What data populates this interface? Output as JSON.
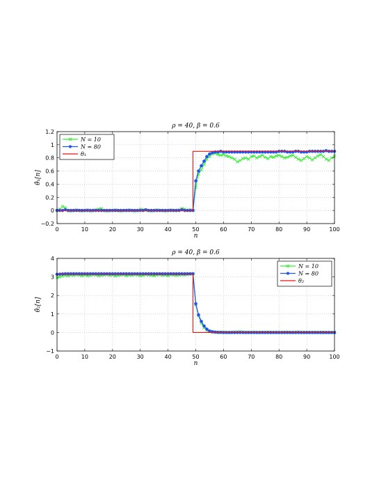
{
  "chart_data": [
    {
      "type": "line",
      "title": "ρ = 40, β = 0.6",
      "xlabel": "n",
      "ylabel": "θ̂₁[n]",
      "xlim": [
        0,
        100
      ],
      "ylim": [
        -0.2,
        1.2
      ],
      "xticks": [
        "0",
        "10",
        "20",
        "30",
        "40",
        "50",
        "60",
        "70",
        "80",
        "90",
        "100"
      ],
      "yticks": [
        "−0.2",
        "0",
        "0.2",
        "0.4",
        "0.6",
        "0.8",
        "1",
        "1.2"
      ],
      "grid": true,
      "legend_position": "top-left",
      "series": [
        {
          "name": "N = 10",
          "color": "#33ee33",
          "marker": "x",
          "y": [
            0.0,
            0.02,
            0.06,
            0.04,
            0.0,
            -0.01,
            0.0,
            0.01,
            0.0,
            -0.01,
            0.0,
            0.01,
            -0.01,
            0.0,
            0.01,
            0.02,
            0.03,
            0.0,
            -0.01,
            0.0,
            0.0,
            0.01,
            0.0,
            -0.01,
            0.0,
            0.0,
            0.01,
            0.0,
            -0.01,
            0.0,
            0.02,
            0.01,
            0.0,
            0.0,
            -0.01,
            0.0,
            0.01,
            0.0,
            0.0,
            -0.01,
            0.0,
            0.01,
            0.0,
            0.0,
            0.01,
            0.03,
            0.02,
            0.0,
            0.01,
            0.0,
            0.35,
            0.55,
            0.62,
            0.7,
            0.78,
            0.82,
            0.86,
            0.87,
            0.85,
            0.84,
            0.85,
            0.83,
            0.82,
            0.8,
            0.78,
            0.74,
            0.76,
            0.79,
            0.8,
            0.78,
            0.82,
            0.83,
            0.8,
            0.82,
            0.84,
            0.81,
            0.79,
            0.82,
            0.81,
            0.83,
            0.84,
            0.82,
            0.8,
            0.81,
            0.83,
            0.84,
            0.81,
            0.78,
            0.76,
            0.79,
            0.82,
            0.8,
            0.77,
            0.8,
            0.83,
            0.85,
            0.82,
            0.78,
            0.76,
            0.8,
            0.83
          ]
        },
        {
          "name": "N = 80",
          "color": "#2255ee",
          "marker": "o",
          "y": [
            0.0,
            0.0,
            0.0,
            0.01,
            0.0,
            0.0,
            0.0,
            0.0,
            0.0,
            0.0,
            0.0,
            0.0,
            0.0,
            0.0,
            0.0,
            0.0,
            0.0,
            0.0,
            0.0,
            0.0,
            0.0,
            0.0,
            0.0,
            0.0,
            0.0,
            0.0,
            0.0,
            0.0,
            0.0,
            0.0,
            0.0,
            0.0,
            0.01,
            0.0,
            0.0,
            0.0,
            0.0,
            0.0,
            0.0,
            0.0,
            0.0,
            0.0,
            0.0,
            0.0,
            0.0,
            0.01,
            0.0,
            0.0,
            0.0,
            0.0,
            0.45,
            0.6,
            0.68,
            0.75,
            0.82,
            0.86,
            0.88,
            0.89,
            0.89,
            0.9,
            0.89,
            0.89,
            0.89,
            0.89,
            0.89,
            0.89,
            0.89,
            0.89,
            0.89,
            0.89,
            0.89,
            0.89,
            0.89,
            0.89,
            0.89,
            0.89,
            0.89,
            0.89,
            0.89,
            0.89,
            0.9,
            0.9,
            0.9,
            0.89,
            0.89,
            0.89,
            0.9,
            0.9,
            0.89,
            0.89,
            0.89,
            0.9,
            0.9,
            0.9,
            0.9,
            0.9,
            0.9,
            0.91,
            0.9,
            0.9,
            0.9
          ]
        },
        {
          "name": "θ₁",
          "color": "#ee1111",
          "marker": "none",
          "x": [
            0,
            49,
            49,
            100
          ],
          "y_line": [
            0.0,
            0.0,
            0.9,
            0.9
          ]
        }
      ]
    },
    {
      "type": "line",
      "title": "ρ = 40, β = 0.6",
      "xlabel": "n",
      "ylabel": "θ̂₂[n]",
      "xlim": [
        0,
        100
      ],
      "ylim": [
        -1,
        4
      ],
      "xticks": [
        "0",
        "10",
        "20",
        "30",
        "40",
        "50",
        "60",
        "70",
        "80",
        "90",
        "100"
      ],
      "yticks": [
        "−1",
        "0",
        "1",
        "2",
        "3",
        "4"
      ],
      "grid": true,
      "legend_position": "top-right",
      "series": [
        {
          "name": "N = 10",
          "color": "#33ee33",
          "marker": "x",
          "y": [
            2.95,
            3.0,
            3.05,
            3.08,
            3.05,
            3.1,
            3.08,
            3.12,
            3.1,
            3.06,
            3.1,
            3.05,
            3.08,
            3.12,
            3.1,
            3.06,
            3.08,
            3.1,
            3.12,
            3.08,
            3.1,
            3.05,
            3.08,
            3.1,
            3.12,
            3.06,
            3.1,
            3.08,
            3.12,
            3.1,
            3.06,
            3.08,
            3.12,
            3.1,
            3.08,
            3.06,
            3.1,
            3.12,
            3.08,
            3.1,
            3.06,
            3.12,
            3.1,
            3.08,
            3.1,
            3.12,
            3.1,
            3.14,
            3.15,
            3.16,
            1.5,
            0.9,
            0.5,
            0.25,
            0.1,
            0.05,
            0.02,
            0.02,
            0.0,
            0.0,
            0.02,
            0.0,
            0.0,
            0.01,
            0.02,
            0.03,
            0.05,
            0.02,
            0.0,
            0.01,
            0.0,
            0.02,
            0.0,
            0.0,
            0.01,
            0.0,
            0.02,
            0.0,
            0.0,
            0.01,
            0.0,
            0.0,
            0.01,
            0.02,
            0.0,
            0.0,
            0.01,
            0.03,
            0.0,
            0.0,
            0.01,
            0.0,
            0.0,
            0.01,
            0.0,
            0.0,
            0.01,
            0.0,
            0.0,
            0.0,
            0.0
          ]
        },
        {
          "name": "N = 80",
          "color": "#2255ee",
          "marker": "o",
          "y": [
            3.14,
            3.15,
            3.16,
            3.17,
            3.17,
            3.17,
            3.17,
            3.17,
            3.17,
            3.17,
            3.17,
            3.17,
            3.17,
            3.17,
            3.17,
            3.17,
            3.17,
            3.17,
            3.17,
            3.17,
            3.17,
            3.17,
            3.17,
            3.17,
            3.17,
            3.17,
            3.17,
            3.17,
            3.17,
            3.17,
            3.17,
            3.17,
            3.17,
            3.17,
            3.17,
            3.17,
            3.17,
            3.17,
            3.17,
            3.17,
            3.17,
            3.17,
            3.17,
            3.17,
            3.17,
            3.17,
            3.17,
            3.17,
            3.17,
            3.17,
            1.55,
            0.95,
            0.6,
            0.35,
            0.18,
            0.08,
            0.04,
            0.02,
            0.01,
            0.01,
            0.0,
            0.0,
            0.0,
            0.0,
            0.0,
            0.0,
            0.0,
            0.0,
            0.0,
            0.0,
            0.0,
            0.0,
            0.0,
            0.0,
            0.0,
            0.0,
            0.0,
            0.0,
            0.0,
            0.0,
            0.0,
            0.0,
            0.0,
            0.0,
            0.0,
            0.0,
            0.0,
            0.0,
            0.0,
            0.0,
            0.0,
            0.0,
            0.0,
            0.0,
            0.0,
            0.0,
            0.0,
            0.0,
            0.0,
            0.0,
            0.0
          ]
        },
        {
          "name": "θ₂",
          "color": "#ee1111",
          "marker": "none",
          "x": [
            0,
            49,
            49,
            100
          ],
          "y_line": [
            3.14,
            3.14,
            0.0,
            0.0
          ]
        }
      ]
    }
  ]
}
